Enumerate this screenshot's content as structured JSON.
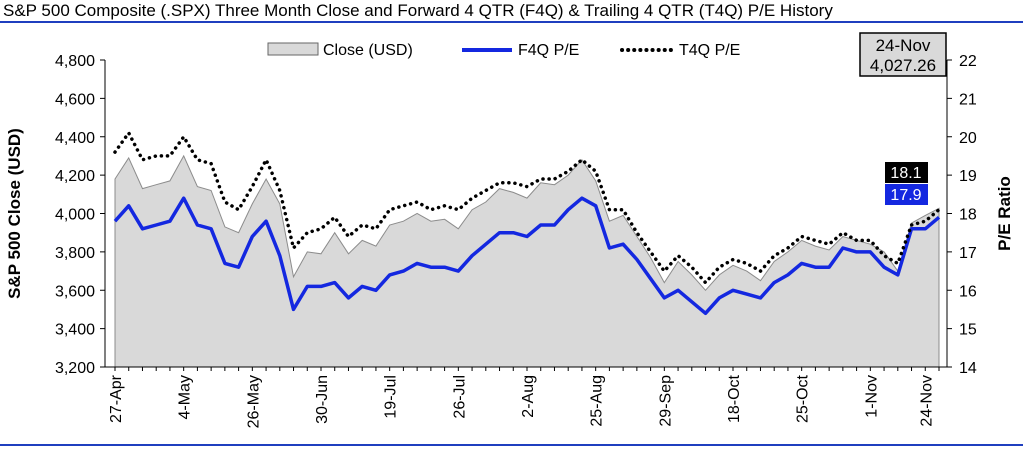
{
  "chart_data": {
    "type": "line",
    "title": "S&P 500 Composite (.SPX) Three Month Close and Forward 4 QTR (F4Q) & Trailing 4 QTR (T4Q) P/E History",
    "ylabel": "S&P 500 Close (USD)",
    "y2label": "P/E Ratio",
    "ylim": [
      3200,
      4800
    ],
    "y2lim": [
      14,
      22
    ],
    "yticks": [
      "3,200",
      "3,400",
      "3,600",
      "3,800",
      "4,000",
      "4,200",
      "4,400",
      "4,600",
      "4,800"
    ],
    "y2ticks": [
      "14",
      "15",
      "16",
      "17",
      "18",
      "19",
      "20",
      "21",
      "22"
    ],
    "x_tick_labels": [
      {
        "i": 0,
        "label": "27-Apr"
      },
      {
        "i": 5,
        "label": "4-May"
      },
      {
        "i": 10,
        "label": "26-May"
      },
      {
        "i": 15,
        "label": "30-Jun"
      },
      {
        "i": 20,
        "label": "19-Jul"
      },
      {
        "i": 25,
        "label": "26-Jul"
      },
      {
        "i": 30,
        "label": "2-Aug"
      },
      {
        "i": 35,
        "label": "25-Aug"
      },
      {
        "i": 40,
        "label": "29-Sep"
      },
      {
        "i": 45,
        "label": "18-Oct"
      },
      {
        "i": 50,
        "label": "25-Oct"
      },
      {
        "i": 55,
        "label": "1-Nov"
      },
      {
        "i": 59,
        "label": "24-Nov"
      }
    ],
    "legend_position": "top-center",
    "grid": false,
    "series": [
      {
        "name": "Close (USD)",
        "kind": "area",
        "axis": "left",
        "color": "#d9d9d9",
        "values": [
          4180,
          4290,
          4130,
          4150,
          4170,
          4300,
          4140,
          4120,
          3930,
          3900,
          4050,
          4180,
          4050,
          3670,
          3800,
          3790,
          3900,
          3790,
          3860,
          3830,
          3940,
          3960,
          4000,
          3960,
          3970,
          3920,
          4020,
          4060,
          4130,
          4110,
          4080,
          4160,
          4150,
          4200,
          4280,
          4170,
          3960,
          3990,
          3880,
          3770,
          3640,
          3750,
          3680,
          3600,
          3680,
          3730,
          3700,
          3650,
          3750,
          3800,
          3860,
          3830,
          3810,
          3880,
          3860,
          3840,
          3800,
          3700,
          3950,
          3990,
          4027
        ]
      },
      {
        "name": "F4Q P/E",
        "kind": "line",
        "axis": "right",
        "color": "#1428e0",
        "values": [
          17.8,
          18.2,
          17.6,
          17.7,
          17.8,
          18.4,
          17.7,
          17.6,
          16.7,
          16.6,
          17.4,
          17.8,
          16.9,
          15.5,
          16.1,
          16.1,
          16.2,
          15.8,
          16.1,
          16.0,
          16.4,
          16.5,
          16.7,
          16.6,
          16.6,
          16.5,
          16.9,
          17.2,
          17.5,
          17.5,
          17.4,
          17.7,
          17.7,
          18.1,
          18.4,
          18.2,
          17.1,
          17.2,
          16.8,
          16.3,
          15.8,
          16.0,
          15.7,
          15.4,
          15.8,
          16.0,
          15.9,
          15.8,
          16.2,
          16.4,
          16.7,
          16.6,
          16.6,
          17.1,
          17.0,
          17.0,
          16.6,
          16.4,
          17.6,
          17.6,
          17.9
        ]
      },
      {
        "name": "T4Q P/E",
        "kind": "line",
        "dashed": true,
        "axis": "right",
        "color": "#000000",
        "values": [
          19.6,
          20.1,
          19.4,
          19.5,
          19.5,
          20.0,
          19.4,
          19.3,
          18.3,
          18.1,
          18.7,
          19.4,
          18.6,
          17.1,
          17.5,
          17.6,
          17.9,
          17.4,
          17.7,
          17.6,
          18.1,
          18.2,
          18.3,
          18.1,
          18.2,
          18.1,
          18.4,
          18.6,
          18.8,
          18.8,
          18.7,
          18.9,
          18.9,
          19.1,
          19.4,
          19.1,
          18.1,
          18.1,
          17.5,
          17.0,
          16.5,
          16.9,
          16.6,
          16.2,
          16.6,
          16.8,
          16.7,
          16.5,
          16.9,
          17.1,
          17.4,
          17.3,
          17.2,
          17.5,
          17.3,
          17.3,
          16.9,
          16.7,
          17.7,
          17.8,
          18.1
        ]
      }
    ],
    "annotations": {
      "date_box": {
        "line1": "24-Nov",
        "line2": "4,027.26"
      },
      "t4q_tag": {
        "text": "18.1",
        "color": "#000000"
      },
      "f4q_tag": {
        "text": "17.9",
        "color": "#1428e0"
      }
    }
  }
}
